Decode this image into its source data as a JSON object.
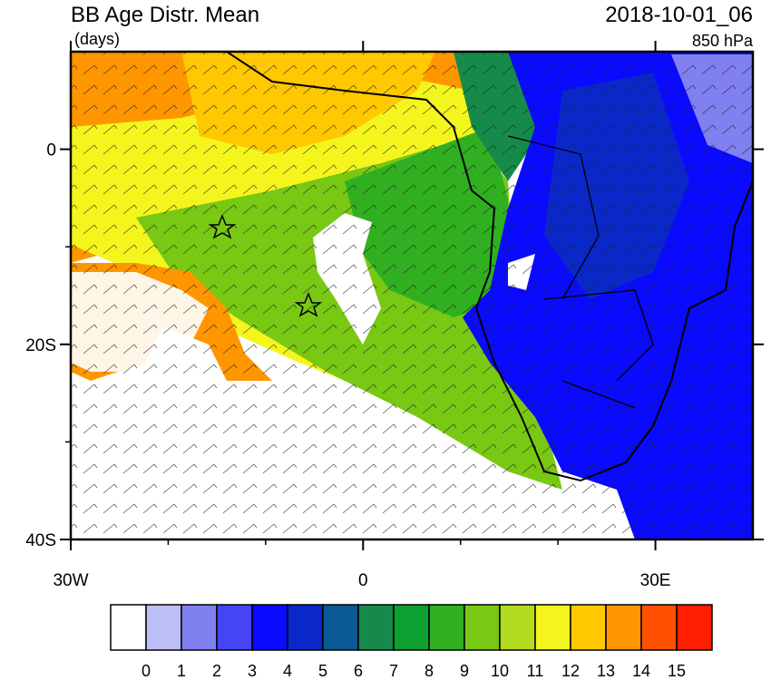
{
  "header": {
    "title": "BB Age Distr. Mean",
    "units": "(days)",
    "valid_time": "2018-10-01_06",
    "level": "850 hPa"
  },
  "axes": {
    "xlim": [
      -30,
      40
    ],
    "ylim": [
      -40,
      10
    ],
    "xticks": [
      {
        "value": -30,
        "label": "30W"
      },
      0,
      {
        "value": 30,
        "label": "30E"
      }
    ],
    "yticks": [
      0,
      {
        "value": -20,
        "label": "20S"
      },
      {
        "value": -40,
        "label": "40S"
      }
    ]
  },
  "colorbar": {
    "labels": [
      0,
      1,
      2,
      3,
      4,
      5,
      6,
      7,
      8,
      9,
      10,
      11,
      12,
      13,
      14,
      15
    ],
    "colors": [
      "#ffffff",
      "#bfbff7",
      "#8080f0",
      "#4545f5",
      "#0a0aff",
      "#0a28c8",
      "#0a5a96",
      "#168a4a",
      "#0ea030",
      "#30b020",
      "#78c814",
      "#b4dc1e",
      "#f5f51e",
      "#ffc800",
      "#ff9600",
      "#ff5000",
      "#ff1e00"
    ]
  }
}
